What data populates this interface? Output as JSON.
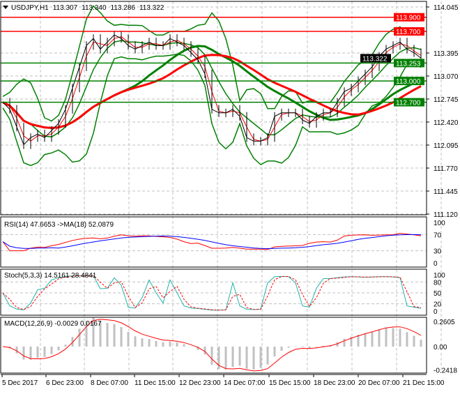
{
  "chart_data": {
    "type": "line",
    "symbol_header": "USDJPY,H1",
    "ohlc_header": [
      "113.307",
      "113.340",
      "113.286",
      "113.322"
    ],
    "price_axis": {
      "ticks": [
        "114.045",
        "113.395",
        "113.070",
        "112.745",
        "112.420",
        "112.095",
        "111.770",
        "111.445",
        "111.120"
      ],
      "range": [
        111.12,
        114.045
      ]
    },
    "current_price": {
      "label": "113.322",
      "value": 113.322,
      "color": "#000000"
    },
    "horizontal_levels": [
      {
        "label": "113.900",
        "value": 113.9,
        "color": "#ff0000"
      },
      {
        "label": "113.700",
        "value": 113.7,
        "color": "#ff0000"
      },
      {
        "label": "113.253",
        "value": 113.253,
        "color": "#008000"
      },
      {
        "label": "113.000",
        "value": 113.0,
        "color": "#008000"
      },
      {
        "label": "112.700",
        "value": 112.7,
        "color": "#008000"
      }
    ],
    "x_tick_labels": [
      "5 Dec 2017",
      "6 Dec 23:00",
      "8 Dec 07:00",
      "11 Dec 15:00",
      "12 Dec 23:00",
      "14 Dec 07:00",
      "15 Dec 15:00",
      "18 Dec 23:00",
      "20 Dec 07:00",
      "21 Dec 15:00"
    ],
    "close": [
      112.7,
      112.6,
      112.35,
      112.1,
      112.2,
      112.25,
      112.2,
      112.3,
      112.4,
      112.6,
      112.9,
      113.2,
      113.5,
      113.6,
      113.45,
      113.55,
      113.65,
      113.6,
      113.5,
      113.45,
      113.5,
      113.55,
      113.5,
      113.5,
      113.6,
      113.55,
      113.5,
      113.4,
      113.3,
      113.1,
      112.6,
      112.55,
      112.55,
      112.6,
      112.5,
      112.2,
      112.15,
      112.15,
      112.2,
      112.5,
      112.55,
      112.55,
      112.55,
      112.45,
      112.4,
      112.5,
      112.55,
      112.55,
      112.7,
      112.85,
      112.9,
      113.0,
      113.1,
      113.2,
      113.35,
      113.45,
      113.5,
      113.55,
      113.45,
      113.4,
      113.322
    ],
    "colors": {
      "price": "#000000",
      "bollinger": "#008000",
      "ma_fast": "#ff0000",
      "ma_slow_red": "#ff0000",
      "ma_slow_green": "#008000",
      "grid": "#c0c0c0"
    },
    "rsi": {
      "header": "RSI(14) 47.6653  ->MA(18) 52.0879",
      "ticks": [
        "100",
        "70",
        "30",
        "0"
      ],
      "line_color": "#ff0000",
      "ma_color": "#0000ff"
    },
    "stoch": {
      "header": "Stoch(5,3,3) 14.5161 28.4841",
      "ticks": [
        "100",
        "80",
        "50",
        "20",
        "0"
      ],
      "main_color": "#20b2aa",
      "signal_color": "#ff0000"
    },
    "macd": {
      "header": "MACD(12,26,9) -0.0029 0.0167",
      "ticks": [
        "0.2605",
        "0.00",
        "-0.2418"
      ],
      "hist_color": "#c0c0c0",
      "signal_color": "#ff0000"
    }
  }
}
